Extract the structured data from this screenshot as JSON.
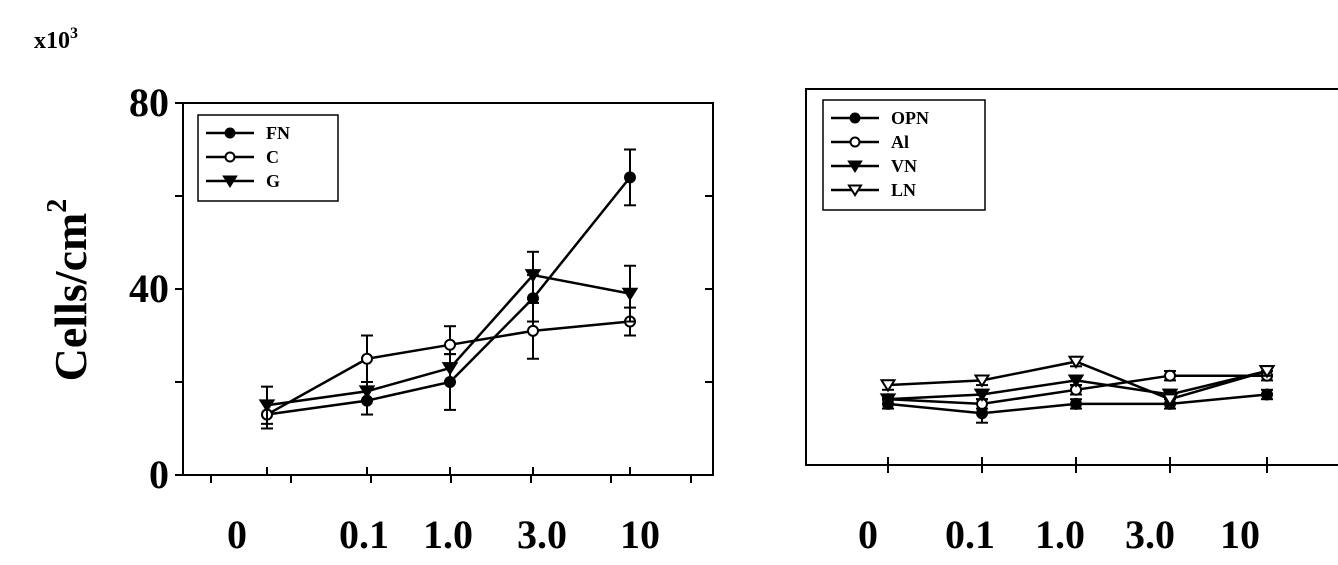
{
  "chart_data": [
    {
      "type": "line",
      "title": "",
      "xlabel": "",
      "ylabel": "Cells/cm",
      "ylabel_superscript": "2",
      "y_scale_label": "x10",
      "y_scale_exponent": "3",
      "categories": [
        "0",
        "0.1",
        "1.0",
        "3.0",
        "10"
      ],
      "ylim": [
        0,
        80
      ],
      "yticks": [
        "0",
        "40",
        "80"
      ],
      "legend_position": "top-left",
      "grid": false,
      "series": [
        {
          "name": "FN",
          "marker": "filled-circle",
          "values": [
            13,
            16,
            20,
            38,
            64
          ],
          "errors": [
            3,
            3,
            6,
            5,
            6
          ]
        },
        {
          "name": "C",
          "marker": "open-circle",
          "values": [
            13,
            25,
            28,
            31,
            33
          ],
          "errors": [
            3,
            5,
            4,
            6,
            3
          ]
        },
        {
          "name": "G",
          "marker": "filled-triangle",
          "values": [
            15,
            18,
            23,
            43,
            39
          ],
          "errors": [
            4,
            2,
            3,
            5,
            6
          ]
        }
      ]
    },
    {
      "type": "line",
      "title": "",
      "xlabel": "",
      "categories": [
        "0",
        "0.1",
        "1.0",
        "3.0",
        "10"
      ],
      "ylim": [
        0,
        80
      ],
      "legend_position": "top-left",
      "grid": false,
      "series": [
        {
          "name": "OPN",
          "marker": "filled-circle",
          "values": [
            13,
            11,
            13,
            13,
            15
          ],
          "errors": [
            1,
            2,
            1,
            1,
            1
          ]
        },
        {
          "name": "Al",
          "marker": "open-circle",
          "values": [
            14,
            13,
            16,
            19,
            19
          ],
          "errors": [
            1,
            1,
            1,
            1,
            1
          ]
        },
        {
          "name": "VN",
          "marker": "filled-triangle",
          "values": [
            14,
            15,
            18,
            15,
            20
          ],
          "errors": [
            1,
            1,
            1,
            1,
            1
          ]
        },
        {
          "name": "LN",
          "marker": "open-triangle",
          "values": [
            17,
            18,
            22,
            14,
            20
          ],
          "errors": [
            1,
            1,
            1,
            1,
            1
          ]
        }
      ]
    }
  ]
}
